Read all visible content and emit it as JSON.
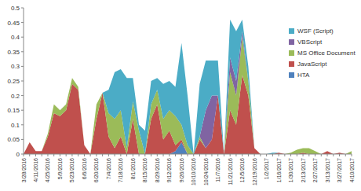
{
  "chart_data": {
    "type": "area",
    "stacked": true,
    "grid": false,
    "legend": "right",
    "categories": [
      "3/28/2016",
      null,
      "4/11/2016",
      null,
      "4/25/2016",
      null,
      "5/9/2016",
      null,
      "5/23/2016",
      null,
      "6/6/2016",
      null,
      "6/20/2016",
      null,
      "7/4/2016",
      null,
      "7/18/2016",
      null,
      "8/1/2016",
      null,
      "8/15/2016",
      null,
      "8/29/2016",
      null,
      "9/12/2016",
      null,
      "9/26/2016",
      null,
      "10/10/2016",
      null,
      "10/24/2016",
      null,
      "11/7/2016",
      null,
      "11/21/2016",
      null,
      "12/5/2016",
      null,
      "12/19/2016",
      null,
      "1/2/2017",
      null,
      "1/16/2017",
      null,
      "1/30/2017",
      null,
      "2/13/2017",
      null,
      "2/27/2017",
      null,
      "3/13/2017",
      null,
      "3/27/2017",
      null,
      "4/10/2017"
    ],
    "ylim": [
      0,
      0.5
    ],
    "yticks": [
      0,
      0.05,
      0.1,
      0.15,
      0.2,
      0.25,
      0.3,
      0.35,
      0.4,
      0.45,
      0.5
    ],
    "series": [
      {
        "name": "WSF (Script)",
        "color": "#4bacc6",
        "values": [
          0,
          0,
          0,
          0,
          0,
          0,
          0,
          0,
          0,
          0,
          0,
          0,
          0,
          0,
          0.08,
          0.16,
          0.14,
          0.24,
          0.08,
          0.02,
          0.08,
          0.08,
          0.04,
          0.12,
          0.1,
          0.1,
          0.28,
          0.17,
          0,
          0.18,
          0.17,
          0.12,
          0.12,
          0,
          0.13,
          0.17,
          0.04,
          0.05,
          0,
          0,
          0,
          0.005,
          0,
          0,
          0,
          0,
          0,
          0,
          0,
          0,
          0,
          0,
          0,
          0,
          0
        ]
      },
      {
        "name": "VBScript",
        "color": "#8064a2",
        "values": [
          0,
          0,
          0,
          0,
          0,
          0,
          0,
          0,
          0,
          0,
          0,
          0,
          0,
          0,
          0,
          0,
          0,
          0,
          0,
          0,
          0,
          0,
          0,
          0,
          0,
          0,
          0,
          0,
          0,
          0,
          0.13,
          0.15,
          0,
          0,
          0.05,
          0.05,
          0.02,
          0,
          0,
          0,
          0,
          0,
          0,
          0,
          0,
          0,
          0,
          0,
          0,
          0,
          0,
          0,
          0,
          0,
          0
        ]
      },
      {
        "name": "MS Office Document",
        "color": "#9bbb59",
        "values": [
          0,
          0,
          0,
          0,
          0.01,
          0.03,
          0.02,
          0.02,
          0.02,
          0.01,
          0,
          0,
          0.05,
          0,
          0.08,
          0.1,
          0.09,
          0.02,
          0.06,
          0.08,
          0,
          0.05,
          0.05,
          0.07,
          0.07,
          0.1,
          0.05,
          0.03,
          0,
          0.01,
          0,
          0,
          0,
          0,
          0.13,
          0.1,
          0.13,
          0.05,
          0,
          0,
          0,
          0,
          0,
          0,
          0.005,
          0.015,
          0.015,
          0.02,
          0.01,
          0,
          0,
          0,
          0,
          0,
          0.01
        ]
      },
      {
        "name": "JavaScript",
        "color": "#c0504d",
        "values": [
          0,
          0.04,
          0.01,
          0.01,
          0.06,
          0.14,
          0.13,
          0.15,
          0.24,
          0.22,
          0.03,
          0,
          0.12,
          0.21,
          0.06,
          0.02,
          0.06,
          0,
          0.12,
          0,
          0,
          0.12,
          0.17,
          0.05,
          0.08,
          0.02,
          0.01,
          0,
          0,
          0.05,
          0.02,
          0.05,
          0.2,
          0,
          0.15,
          0.1,
          0.27,
          0.2,
          0.02,
          0,
          0,
          0,
          0.005,
          0,
          0,
          0,
          0.005,
          0,
          0,
          0,
          0.01,
          0,
          0.005,
          0,
          0
        ]
      },
      {
        "name": "HTA",
        "color": "#4f81bd",
        "values": [
          0,
          0,
          0,
          0,
          0,
          0,
          0,
          0,
          0,
          0,
          0,
          0,
          0,
          0,
          0,
          0,
          0,
          0,
          0,
          0,
          0,
          0,
          0,
          0,
          0,
          0.01,
          0.04,
          0,
          0,
          0,
          0,
          0,
          0,
          0,
          0,
          0,
          0,
          0,
          0,
          0,
          0,
          0,
          0,
          0,
          0,
          0,
          0,
          0,
          0,
          0,
          0,
          0,
          0,
          0,
          0
        ]
      }
    ]
  }
}
